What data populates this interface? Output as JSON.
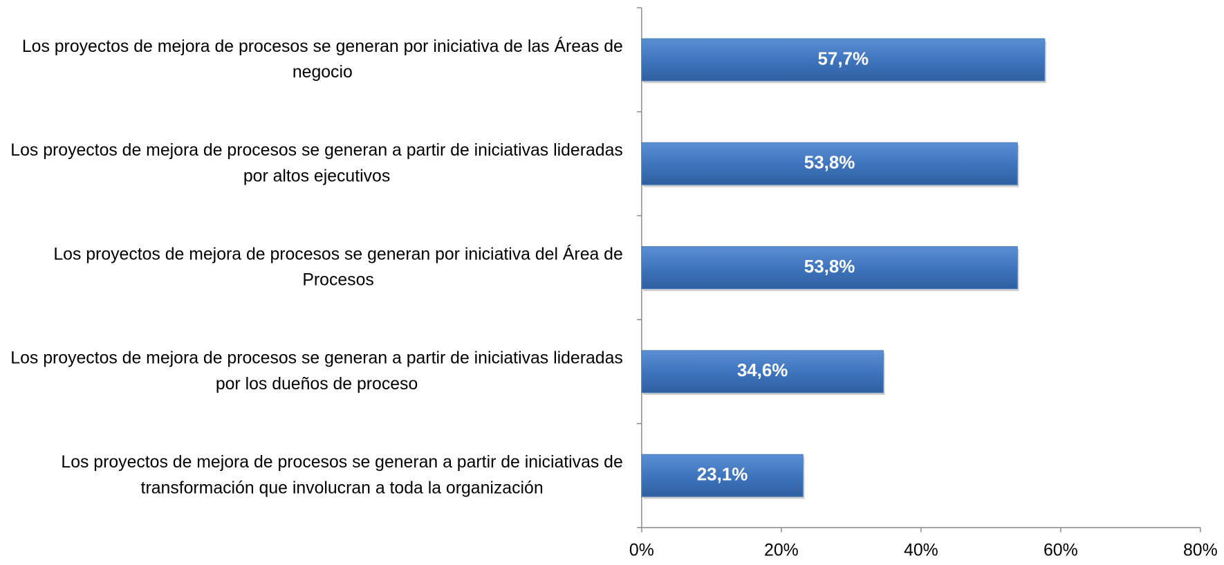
{
  "chart_data": {
    "type": "bar",
    "orientation": "horizontal",
    "categories": [
      "Los proyectos de mejora de procesos se generan por iniciativa de las Áreas de negocio",
      "Los proyectos de mejora de procesos se generan a partir de iniciativas lideradas por altos ejecutivos",
      "Los proyectos de mejora de procesos se generan por iniciativa del Área de Procesos",
      "Los proyectos de mejora de procesos se generan a partir de iniciativas lideradas por los dueños de proceso",
      "Los proyectos de mejora de procesos se generan a partir de iniciativas de transformación que involucran a toda la organización"
    ],
    "values": [
      57.7,
      53.8,
      53.8,
      34.6,
      23.1
    ],
    "value_labels": [
      "57,7%",
      "53,8%",
      "53,8%",
      "34,6%",
      "23,1%"
    ],
    "color": "#4a7ebb",
    "xlim": [
      0,
      80
    ],
    "xticks": [
      {
        "value": 0,
        "label": "0%"
      },
      {
        "value": 20,
        "label": "20%"
      },
      {
        "value": 40,
        "label": "40%"
      },
      {
        "value": 60,
        "label": "60%"
      },
      {
        "value": 80,
        "label": "80%"
      }
    ]
  }
}
